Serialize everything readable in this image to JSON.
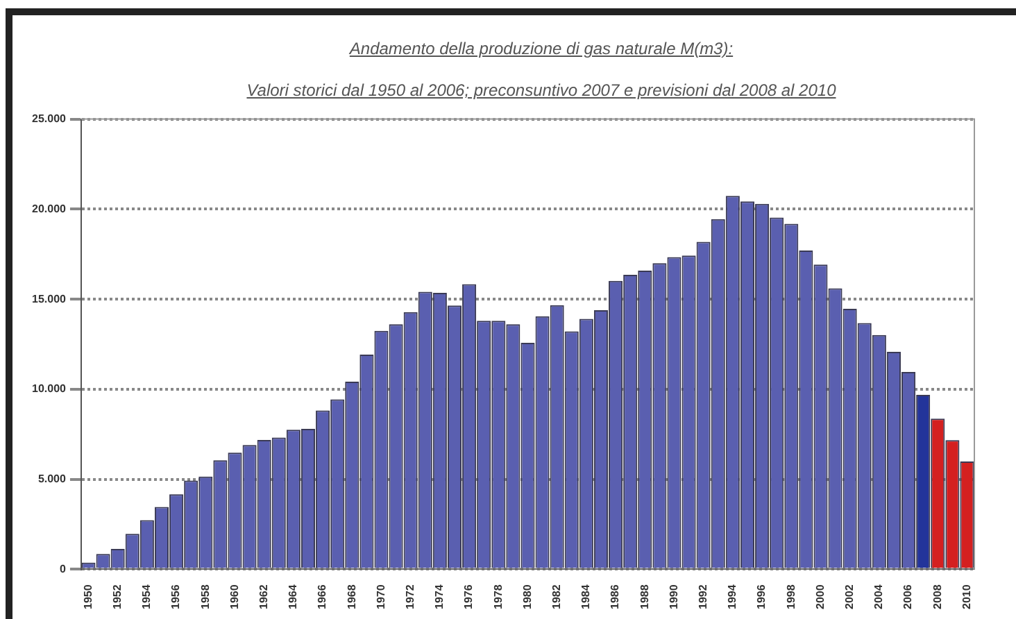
{
  "chart_data": {
    "type": "bar",
    "title": "Andamento della produzione di gas naturale M(m3):",
    "subtitle": "Valori storici dal 1950 al 2006; preconsuntivo 2007 e previsioni dal 2008 al 2010",
    "categories": [
      "1950",
      null,
      "1952",
      null,
      "1954",
      null,
      "1956",
      null,
      "1958",
      null,
      "1960",
      null,
      "1962",
      null,
      "1964",
      null,
      "1966",
      null,
      "1968",
      null,
      "1970",
      null,
      "1972",
      null,
      "1974",
      null,
      "1976",
      null,
      "1978",
      null,
      "1980",
      null,
      "1982",
      null,
      "1984",
      null,
      "1986",
      null,
      "1988",
      null,
      "1990",
      null,
      "1992",
      null,
      "1994",
      null,
      "1996",
      null,
      "1998",
      null,
      "2000",
      null,
      "2002",
      null,
      "2004",
      null,
      "2006",
      null,
      "2008",
      null,
      "2010"
    ],
    "values": [
      370,
      850,
      1130,
      1970,
      2730,
      3460,
      4170,
      4930,
      5150,
      6060,
      6480,
      6900,
      7180,
      7320,
      7750,
      7800,
      8820,
      9440,
      10420,
      11920,
      13240,
      13610,
      14280,
      15410,
      15350,
      14650,
      15830,
      13800,
      13800,
      13610,
      12580,
      14050,
      14670,
      13210,
      13910,
      14390,
      16020,
      16350,
      16580,
      17000,
      17340,
      17420,
      18180,
      19450,
      20740,
      20430,
      20290,
      19530,
      19190,
      17700,
      16920,
      15600,
      14470,
      13680,
      13010,
      12080,
      10960,
      9690,
      8370,
      7170,
      5990
    ],
    "colors": [
      "#5a5fb0",
      "#5a5fb0",
      "#5a5fb0",
      "#5a5fb0",
      "#5a5fb0",
      "#5a5fb0",
      "#5a5fb0",
      "#5a5fb0",
      "#5a5fb0",
      "#5a5fb0",
      "#5a5fb0",
      "#5a5fb0",
      "#5a5fb0",
      "#5a5fb0",
      "#5a5fb0",
      "#5a5fb0",
      "#5a5fb0",
      "#5a5fb0",
      "#5a5fb0",
      "#5a5fb0",
      "#5a5fb0",
      "#5a5fb0",
      "#5a5fb0",
      "#5a5fb0",
      "#5a5fb0",
      "#5a5fb0",
      "#5a5fb0",
      "#5a5fb0",
      "#5a5fb0",
      "#5a5fb0",
      "#5a5fb0",
      "#5a5fb0",
      "#5a5fb0",
      "#5a5fb0",
      "#5a5fb0",
      "#5a5fb0",
      "#5a5fb0",
      "#5a5fb0",
      "#5a5fb0",
      "#5a5fb0",
      "#5a5fb0",
      "#5a5fb0",
      "#5a5fb0",
      "#5a5fb0",
      "#5a5fb0",
      "#5a5fb0",
      "#5a5fb0",
      "#5a5fb0",
      "#5a5fb0",
      "#5a5fb0",
      "#5a5fb0",
      "#5a5fb0",
      "#5a5fb0",
      "#5a5fb0",
      "#5a5fb0",
      "#5a5fb0",
      "#5a5fb0",
      "#23349a",
      "#d42020",
      "#d42020",
      "#d42020"
    ],
    "ylim": [
      0,
      25000
    ],
    "yticks": [
      0,
      {
        "value": 5000,
        "label": "5.000"
      },
      {
        "value": 10000,
        "label": "10.000"
      },
      {
        "value": 15000,
        "label": "15.000"
      },
      {
        "value": 20000,
        "label": "20.000"
      },
      {
        "value": 25000,
        "label": "25.000"
      }
    ],
    "grid": "y",
    "legend": false
  }
}
